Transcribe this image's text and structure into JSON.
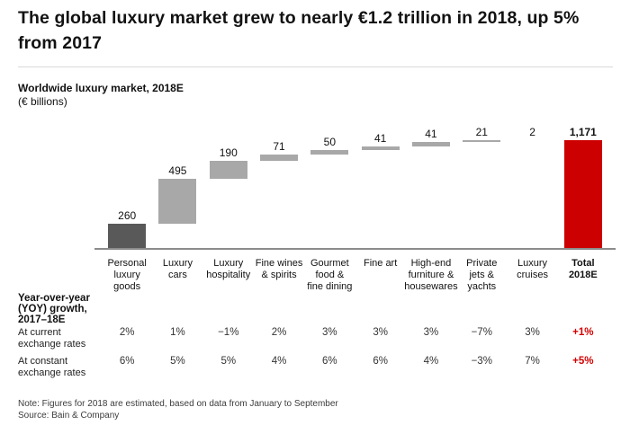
{
  "header": {
    "title": "The global luxury market grew to nearly €1.2 trillion in 2018, up 5%\nfrom 2017"
  },
  "chart": {
    "title": "Worldwide luxury market, 2018E",
    "units_label": "(€ billions)"
  },
  "chart_data": {
    "type": "bar",
    "subtype": "waterfall",
    "title": "Worldwide luxury market, 2018E",
    "ylabel": "€ billions",
    "ylim": [
      0,
      1171
    ],
    "grid": false,
    "legend": "none",
    "categories": [
      "Personal\nluxury\ngoods",
      "Luxury\ncars",
      "Luxury\nhospitality",
      "Fine wines\n& spirits",
      "Gourmet\nfood &\nfine dining",
      "Fine art",
      "High-end\nfurniture &\nhousewares",
      "Private\njets &\nyachts",
      "Luxury\ncruises",
      "Total\n2018E"
    ],
    "values": [
      260,
      495,
      190,
      71,
      50,
      41,
      41,
      21,
      2,
      1171
    ],
    "value_labels": [
      "260",
      "495",
      "190",
      "71",
      "50",
      "41",
      "41",
      "21",
      "2",
      "1,171"
    ],
    "total_index": 9,
    "colors": {
      "first_bar": "#595959",
      "middle_bar": "#a8a8a8",
      "total_bar": "#cc0000",
      "accent_text": "#d40000",
      "axis": "#8c8c8c"
    },
    "yoy_rows": [
      {
        "name": "At current exchange rates",
        "values": [
          "2%",
          "1%",
          "−1%",
          "2%",
          "3%",
          "3%",
          "3%",
          "−7%",
          "3%",
          "+1%"
        ]
      },
      {
        "name": "At constant exchange rates",
        "values": [
          "6%",
          "5%",
          "5%",
          "4%",
          "6%",
          "6%",
          "4%",
          "−3%",
          "7%",
          "+5%"
        ]
      }
    ]
  },
  "yoy": {
    "header": "Year-over-year\n(YOY) growth,\n2017–18E",
    "row1_label": "At current\nexchange rates",
    "row2_label": "At constant\nexchange rates"
  },
  "footer": {
    "note": "Note: Figures for 2018 are estimated, based on data from January to September",
    "source": "Source: Bain & Company"
  }
}
